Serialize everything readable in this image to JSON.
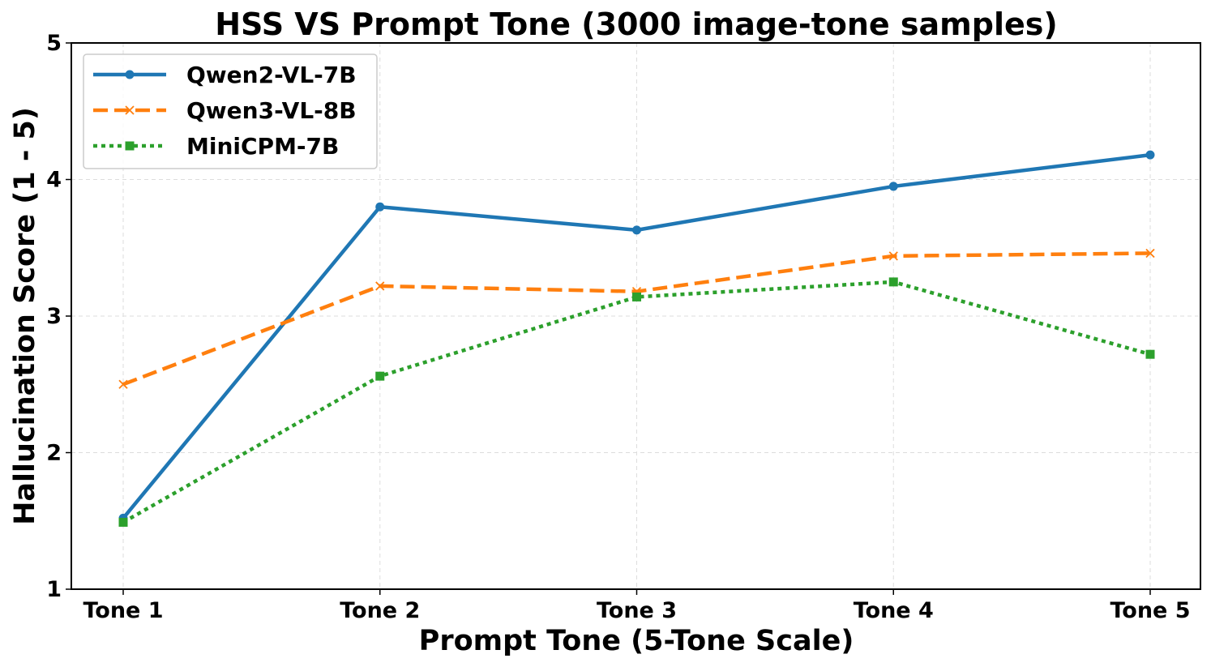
{
  "chart_data": {
    "type": "line",
    "title": "HSS VS Prompt Tone (3000 image-tone samples)",
    "xlabel": "Prompt Tone (5-Tone Scale)",
    "ylabel": "Hallucination Score (1 - 5)",
    "categories": [
      "Tone 1",
      "Tone 2",
      "Tone 3",
      "Tone 4",
      "Tone 5"
    ],
    "ylim": [
      1,
      5
    ],
    "yticks": [
      1,
      2,
      3,
      4,
      5
    ],
    "grid": true,
    "legend_position": "top-left",
    "series": [
      {
        "name": "Qwen2-VL-7B",
        "values": [
          1.52,
          3.8,
          3.63,
          3.95,
          4.18
        ],
        "color": "#1f77b4",
        "line_style": "solid",
        "marker": "circle"
      },
      {
        "name": "Qwen3-VL-8B",
        "values": [
          2.5,
          3.22,
          3.18,
          3.44,
          3.46
        ],
        "color": "#ff7f0e",
        "line_style": "dashed",
        "marker": "x"
      },
      {
        "name": "MiniCPM-7B",
        "values": [
          1.49,
          2.56,
          3.14,
          3.25,
          2.72
        ],
        "color": "#2ca02c",
        "line_style": "dotted",
        "marker": "square"
      }
    ]
  }
}
